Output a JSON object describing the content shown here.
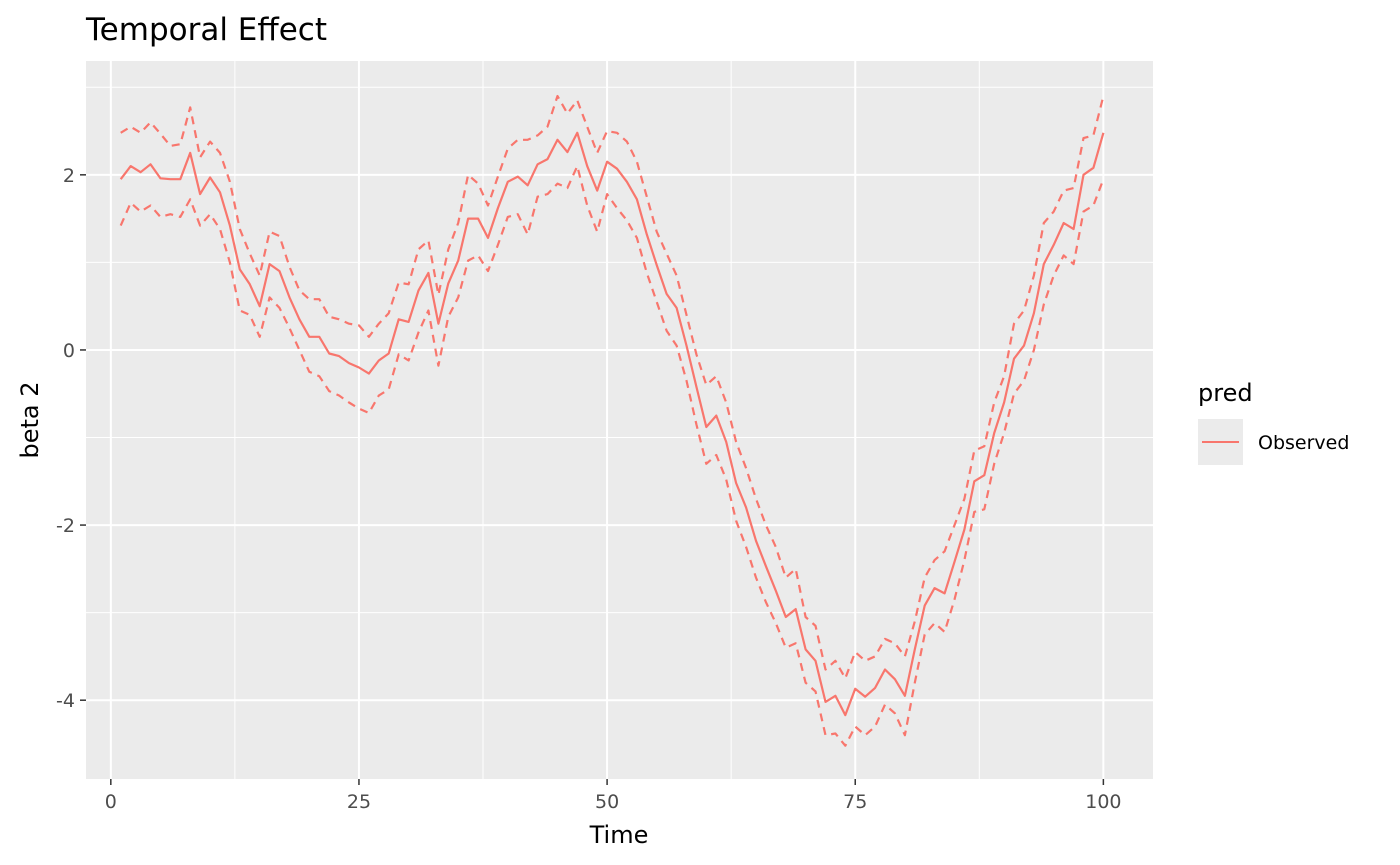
{
  "chart_data": {
    "type": "line",
    "title": "Temporal Effect",
    "xlabel": "Time",
    "ylabel": "beta 2",
    "xlim": [
      -2.5,
      105
    ],
    "ylim": [
      -4.9,
      3.3
    ],
    "x_ticks": [
      0,
      25,
      50,
      75,
      100
    ],
    "x_tick_labels": [
      "0",
      "25",
      "50",
      "75",
      "100"
    ],
    "y_ticks": [
      -4,
      -2,
      0,
      2
    ],
    "y_tick_labels": [
      "-4",
      "-2",
      "0",
      "2"
    ],
    "grid": true,
    "legend": {
      "title": "pred",
      "position": "right",
      "entries": [
        "Observed"
      ]
    },
    "x": [
      1,
      2,
      3,
      4,
      5,
      6,
      7,
      8,
      9,
      10,
      11,
      12,
      13,
      14,
      15,
      16,
      17,
      18,
      19,
      20,
      21,
      22,
      23,
      24,
      25,
      26,
      27,
      28,
      29,
      30,
      31,
      32,
      33,
      34,
      35,
      36,
      37,
      38,
      39,
      40,
      41,
      42,
      43,
      44,
      45,
      46,
      47,
      48,
      49,
      50,
      51,
      52,
      53,
      54,
      55,
      56,
      57,
      58,
      59,
      60,
      61,
      62,
      63,
      64,
      65,
      66,
      67,
      68,
      69,
      70,
      71,
      72,
      73,
      74,
      75,
      76,
      77,
      78,
      79,
      80,
      81,
      82,
      83,
      84,
      85,
      86,
      87,
      88,
      89,
      90,
      91,
      92,
      93,
      94,
      95,
      96,
      97,
      98,
      99,
      100
    ],
    "series": [
      {
        "name": "Observed",
        "color": "#f8766d",
        "values": [
          1.95,
          2.1,
          2.03,
          2.12,
          1.96,
          1.95,
          1.95,
          2.25,
          1.78,
          1.97,
          1.8,
          1.42,
          0.92,
          0.75,
          0.5,
          0.98,
          0.9,
          0.6,
          0.35,
          0.15,
          0.15,
          -0.04,
          -0.07,
          -0.15,
          -0.2,
          -0.27,
          -0.12,
          -0.04,
          0.35,
          0.32,
          0.68,
          0.88,
          0.3,
          0.76,
          1.02,
          1.5,
          1.5,
          1.28,
          1.62,
          1.92,
          1.98,
          1.88,
          2.12,
          2.18,
          2.4,
          2.26,
          2.48,
          2.1,
          1.82,
          2.15,
          2.07,
          1.92,
          1.72,
          1.32,
          0.97,
          0.64,
          0.48,
          0.05,
          -0.42,
          -0.88,
          -0.75,
          -1.05,
          -1.52,
          -1.8,
          -2.18,
          -2.47,
          -2.75,
          -3.05,
          -2.96,
          -3.42,
          -3.55,
          -4.02,
          -3.95,
          -4.17,
          -3.87,
          -3.96,
          -3.86,
          -3.65,
          -3.76,
          -3.95,
          -3.42,
          -2.92,
          -2.72,
          -2.78,
          -2.42,
          -2.05,
          -1.5,
          -1.43,
          -0.95,
          -0.6,
          -0.1,
          0.05,
          0.42,
          0.98,
          1.2,
          1.45,
          1.38,
          2.0,
          2.08,
          2.48
        ]
      },
      {
        "name": "",
        "color": "#f8766d",
        "dashed": true,
        "values": [
          2.48,
          2.55,
          2.48,
          2.6,
          2.47,
          2.33,
          2.35,
          2.77,
          2.2,
          2.38,
          2.25,
          1.92,
          1.38,
          1.1,
          0.85,
          1.35,
          1.3,
          0.95,
          0.68,
          0.58,
          0.58,
          0.38,
          0.35,
          0.3,
          0.28,
          0.15,
          0.3,
          0.42,
          0.77,
          0.75,
          1.15,
          1.25,
          0.63,
          1.15,
          1.45,
          2.0,
          1.9,
          1.65,
          1.98,
          2.3,
          2.4,
          2.4,
          2.45,
          2.55,
          2.9,
          2.7,
          2.85,
          2.55,
          2.25,
          2.5,
          2.48,
          2.38,
          2.15,
          1.75,
          1.35,
          1.1,
          0.85,
          0.4,
          -0.05,
          -0.4,
          -0.3,
          -0.6,
          -1.05,
          -1.35,
          -1.7,
          -2.0,
          -2.25,
          -2.6,
          -2.5,
          -3.05,
          -3.15,
          -3.65,
          -3.55,
          -3.75,
          -3.45,
          -3.55,
          -3.5,
          -3.3,
          -3.35,
          -3.5,
          -3.1,
          -2.6,
          -2.4,
          -2.3,
          -2.0,
          -1.7,
          -1.15,
          -1.1,
          -0.6,
          -0.3,
          0.3,
          0.45,
          0.85,
          1.45,
          1.58,
          1.82,
          1.85,
          2.42,
          2.45,
          2.9
        ]
      },
      {
        "name": "",
        "color": "#f8766d",
        "dashed": true,
        "values": [
          1.42,
          1.68,
          1.58,
          1.65,
          1.52,
          1.55,
          1.52,
          1.72,
          1.42,
          1.55,
          1.38,
          1.0,
          0.45,
          0.4,
          0.15,
          0.6,
          0.48,
          0.25,
          0.0,
          -0.25,
          -0.3,
          -0.47,
          -0.52,
          -0.6,
          -0.67,
          -0.72,
          -0.52,
          -0.45,
          -0.05,
          -0.12,
          0.2,
          0.45,
          -0.18,
          0.38,
          0.6,
          1.02,
          1.08,
          0.9,
          1.2,
          1.52,
          1.55,
          1.32,
          1.75,
          1.78,
          1.9,
          1.85,
          2.1,
          1.65,
          1.35,
          1.78,
          1.62,
          1.48,
          1.28,
          0.88,
          0.55,
          0.22,
          0.05,
          -0.35,
          -0.85,
          -1.3,
          -1.2,
          -1.48,
          -1.95,
          -2.25,
          -2.6,
          -2.88,
          -3.12,
          -3.4,
          -3.35,
          -3.8,
          -3.9,
          -4.4,
          -4.38,
          -4.52,
          -4.3,
          -4.4,
          -4.3,
          -4.05,
          -4.15,
          -4.4,
          -3.8,
          -3.25,
          -3.12,
          -3.22,
          -2.85,
          -2.4,
          -1.85,
          -1.82,
          -1.3,
          -0.95,
          -0.5,
          -0.35,
          0.0,
          0.52,
          0.85,
          1.08,
          0.98,
          1.58,
          1.65,
          1.95
        ]
      }
    ]
  }
}
